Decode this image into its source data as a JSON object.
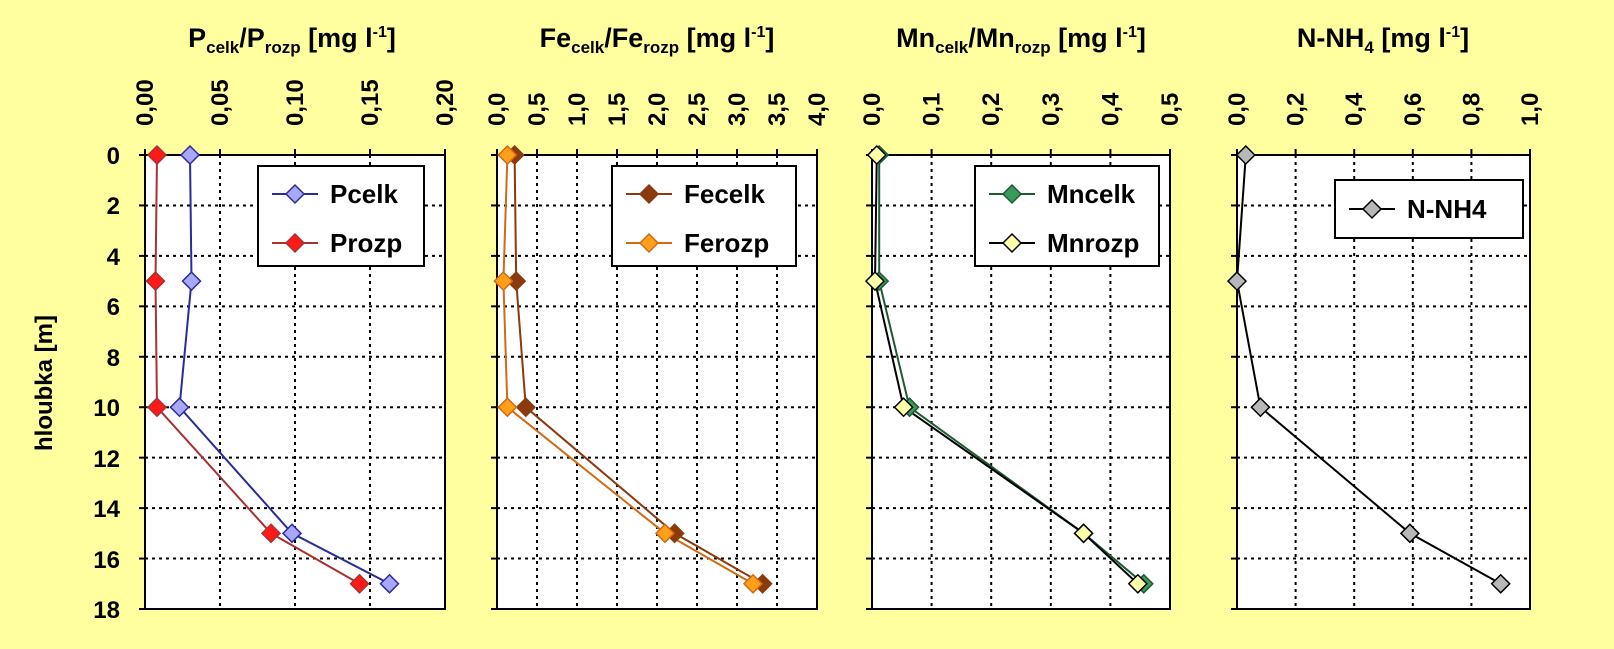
{
  "y_axis": {
    "label": "hloubka [m]",
    "ticks": [
      "0",
      "2",
      "4",
      "6",
      "8",
      "10",
      "12",
      "14",
      "16",
      "18"
    ],
    "range": [
      0,
      18
    ]
  },
  "chart_data": [
    {
      "type": "line",
      "title_parts": [
        "P",
        "celk",
        "/P",
        "rozp",
        " [mg l",
        "-1",
        "]"
      ],
      "x_ticks": [
        "0,00",
        "0,05",
        "0,10",
        "0,15",
        "0,20"
      ],
      "xlim": [
        0,
        0.2
      ],
      "ylim": [
        18,
        0
      ],
      "series": [
        {
          "name": "Pcelk",
          "color": "#2b2b99",
          "marker_fill": "#a8a8f8",
          "x": [
            0.03,
            0.031,
            0.023,
            0.098,
            0.163
          ],
          "y": [
            0,
            5,
            10,
            15,
            17
          ]
        },
        {
          "name": "Prozp",
          "color": "#a83232",
          "marker_fill": "#ff1a1a",
          "x": [
            0.008,
            0.007,
            0.008,
            0.084,
            0.143
          ],
          "y": [
            0,
            5,
            10,
            15,
            17
          ]
        }
      ]
    },
    {
      "type": "line",
      "title_parts": [
        "Fe",
        "celk",
        "/Fe",
        "rozp",
        " [mg l",
        "-1",
        "]"
      ],
      "x_ticks": [
        "0,0",
        "0,5",
        "1,0",
        "1,5",
        "2,0",
        "2,5",
        "3,0",
        "3,5",
        "4,0"
      ],
      "xlim": [
        0,
        4
      ],
      "ylim": [
        18,
        0
      ],
      "series": [
        {
          "name": "Fecelk",
          "color": "#8b3a0e",
          "marker_fill": "#8b3a0e",
          "x": [
            0.22,
            0.24,
            0.36,
            2.22,
            3.32
          ],
          "y": [
            0,
            5,
            10,
            15,
            17
          ]
        },
        {
          "name": "Ferozp",
          "color": "#d26a14",
          "marker_fill": "#ff9f1a",
          "x": [
            0.13,
            0.08,
            0.13,
            2.1,
            3.2
          ],
          "y": [
            0,
            5,
            10,
            15,
            17
          ]
        }
      ]
    },
    {
      "type": "line",
      "title_parts": [
        "Mn",
        "celk",
        "/Mn",
        "rozp",
        " [mg l",
        "-1",
        "]"
      ],
      "x_ticks": [
        "0,0",
        "0,1",
        "0,2",
        "0,3",
        "0,4",
        "0,5"
      ],
      "xlim": [
        0,
        0.5
      ],
      "ylim": [
        18,
        0
      ],
      "series": [
        {
          "name": "Mncelk",
          "color": "#1e5a32",
          "marker_fill": "#3a9a5a",
          "x": [
            0.012,
            0.012,
            0.063,
            0.355,
            0.456
          ],
          "y": [
            0,
            5,
            10,
            15,
            17
          ]
        },
        {
          "name": "Mnrozp",
          "color": "#000000",
          "marker_fill": "#ffffa8",
          "x": [
            0.008,
            0.005,
            0.053,
            0.355,
            0.446
          ],
          "y": [
            0,
            5,
            10,
            15,
            17
          ]
        }
      ]
    },
    {
      "type": "line",
      "title_parts": [
        "N-NH",
        "4",
        " [mg l",
        "-1",
        "]"
      ],
      "x_ticks": [
        "0,0",
        "0,2",
        "0,4",
        "0,6",
        "0,8",
        "1,0"
      ],
      "xlim": [
        0,
        1
      ],
      "ylim": [
        18,
        0
      ],
      "series": [
        {
          "name": "N-NH4",
          "color": "#000000",
          "marker_fill": "#b8b8b8",
          "x": [
            0.03,
            0.0,
            0.08,
            0.59,
            0.9
          ],
          "y": [
            0,
            5,
            10,
            15,
            17
          ]
        }
      ]
    }
  ]
}
